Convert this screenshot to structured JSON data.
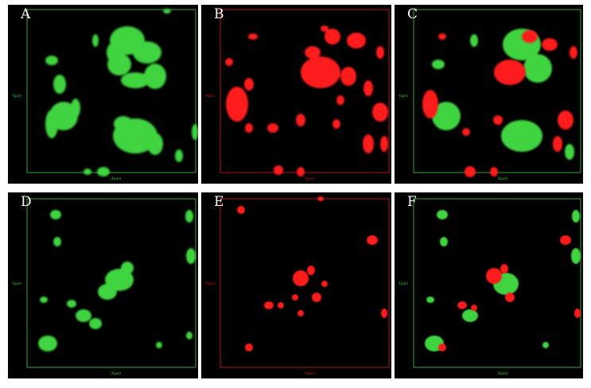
{
  "panels": [
    {
      "id": "A",
      "letter": "A",
      "channel": "green",
      "axis_color": "#3ad13a",
      "y_axis_label": "Y(µm)",
      "x_axis_label": "X(µm)"
    },
    {
      "id": "B",
      "letter": "B",
      "channel": "red",
      "axis_color": "#e01a1a",
      "y_axis_label": "Y(µm)",
      "x_axis_label": "X(µm)"
    },
    {
      "id": "C",
      "letter": "C",
      "channel": "merge",
      "axis_color": "#3ad13a",
      "y_axis_label": "Y(µm)",
      "x_axis_label": "X(µm)"
    },
    {
      "id": "D",
      "letter": "D",
      "channel": "green",
      "axis_color": "#3ad13a",
      "y_axis_label": "Y(µm)",
      "x_axis_label": "X(µm)"
    },
    {
      "id": "E",
      "letter": "E",
      "channel": "red",
      "axis_color": "#e01a1a",
      "y_axis_label": "Y(µm)",
      "x_axis_label": "X(µm)"
    },
    {
      "id": "F",
      "letter": "F",
      "channel": "merge",
      "axis_color": "#3ad13a",
      "y_axis_label": "Y(µm)",
      "x_axis_label": "X(µm)"
    }
  ],
  "colors": {
    "green": "#3fd43f",
    "red": "#ff1a1a",
    "background": "#000000"
  }
}
